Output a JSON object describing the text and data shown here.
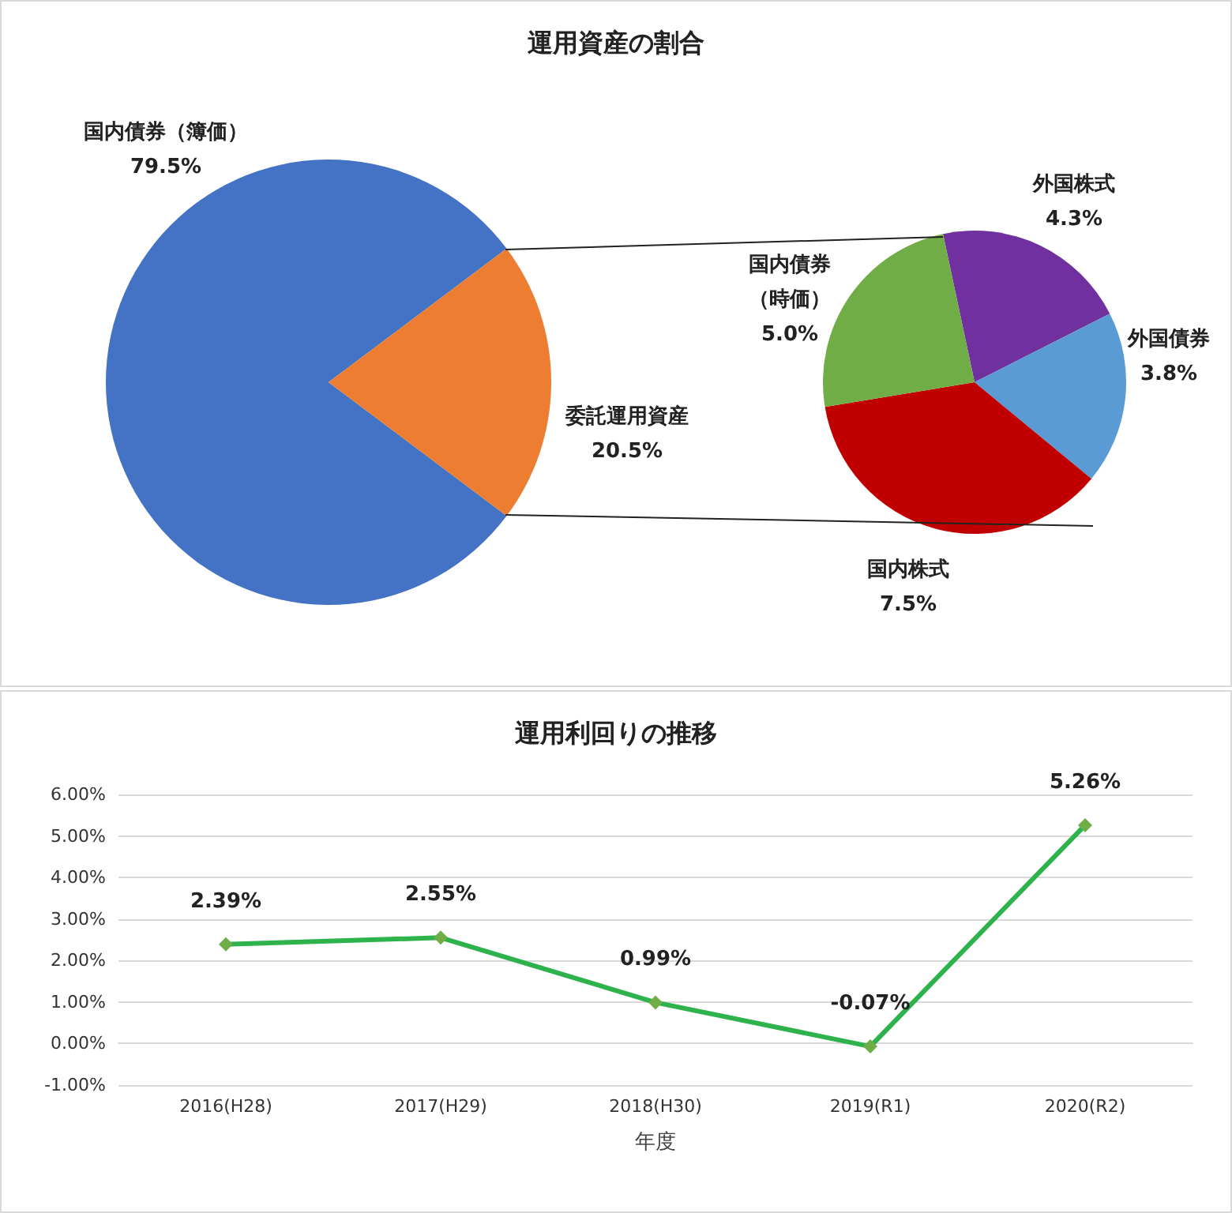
{
  "chart_data": [
    {
      "type": "pie",
      "title": "運用資産の割合",
      "categories": [
        "国内債券（簿価）",
        "委託運用資産"
      ],
      "values": [
        79.5,
        20.5
      ],
      "colors": [
        "#4472c4",
        "#ed7d31"
      ],
      "value_labels": [
        "79.5%",
        "20.5%"
      ],
      "legend": false
    },
    {
      "type": "pie",
      "categories": [
        "外国株式",
        "外国債券",
        "国内株式",
        "国内債券（時価）"
      ],
      "values": [
        4.3,
        3.8,
        7.5,
        5.0
      ],
      "colors": [
        "#7030a0",
        "#5b9bd5",
        "#c00000",
        "#70ad47"
      ],
      "value_labels": [
        "4.3%",
        "3.8%",
        "7.5%",
        "5.0%"
      ],
      "legend": false
    },
    {
      "type": "line",
      "title": "運用利回りの推移",
      "xlabel": "年度",
      "categories": [
        "2016(H28)",
        "2017(H29)",
        "2018(H30)",
        "2019(R1)",
        "2020(R2)"
      ],
      "series": [
        {
          "color": "#2eb24c",
          "values": [
            2.39,
            2.55,
            0.99,
            -0.07,
            5.26
          ]
        }
      ],
      "value_labels": [
        "2.39%",
        "2.55%",
        "0.99%",
        "-0.07%",
        "5.26%"
      ],
      "ylim": [
        -1,
        6
      ],
      "yticks": [
        {
          "value": -1,
          "label": "-1.00%"
        },
        {
          "value": 0,
          "label": "0.00%"
        },
        {
          "value": 1,
          "label": "1.00%"
        },
        {
          "value": 2,
          "label": "2.00%"
        },
        {
          "value": 3,
          "label": "3.00%"
        },
        {
          "value": 4,
          "label": "4.00%"
        },
        {
          "value": 5,
          "label": "5.00%"
        },
        {
          "value": 6,
          "label": "6.00%"
        }
      ],
      "grid": "y",
      "marker": "diamond",
      "line_style": "solid",
      "legend": false
    }
  ]
}
